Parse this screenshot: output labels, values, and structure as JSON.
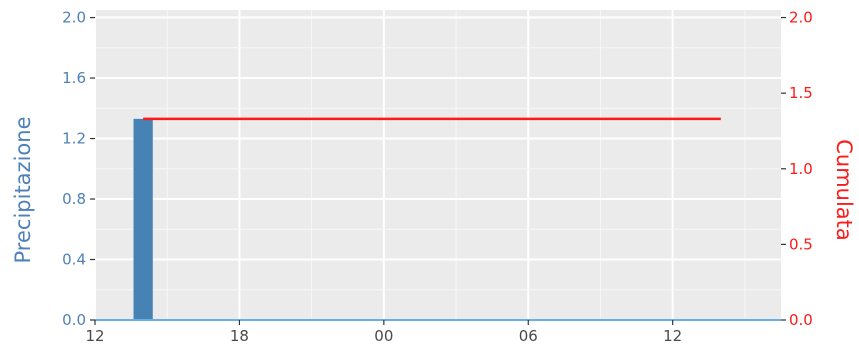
{
  "chart_data": {
    "type": "bar",
    "x_tick_labels": [
      "12",
      "18",
      "00",
      "06",
      "12"
    ],
    "x_tick_hours": [
      12,
      18,
      24,
      30,
      36
    ],
    "xlim_hours": [
      12,
      40.5
    ],
    "y_left": {
      "label": "Precipitazione",
      "ticks": [
        "0.0",
        "0.4",
        "0.8",
        "1.2",
        "1.6",
        "2.0"
      ],
      "tick_values": [
        0,
        0.4,
        0.8,
        1.2,
        1.6,
        2.0
      ],
      "ylim": [
        0,
        2.05
      ],
      "color": "#4f81b8"
    },
    "y_right": {
      "label": "Cumulata",
      "ticks": [
        "0.0",
        "0.5",
        "1.0",
        "1.5",
        "2.0"
      ],
      "tick_values": [
        0,
        0.5,
        1.0,
        1.5,
        2.0
      ],
      "ylim": [
        0,
        2.05
      ],
      "color": "#ff1a1a"
    },
    "bars": {
      "color": "#4682b4",
      "x_hours": [
        14.0
      ],
      "width_hours": 0.8,
      "values": [
        1.33
      ]
    },
    "baseline": {
      "color": "#6aaee6",
      "value": 0
    },
    "cumulative_line": {
      "color": "#ff1a1a",
      "x_start_hours": 14.0,
      "x_end_hours": 38.0,
      "value": 1.33
    },
    "grid": true,
    "panel_background": "#ebebeb"
  }
}
